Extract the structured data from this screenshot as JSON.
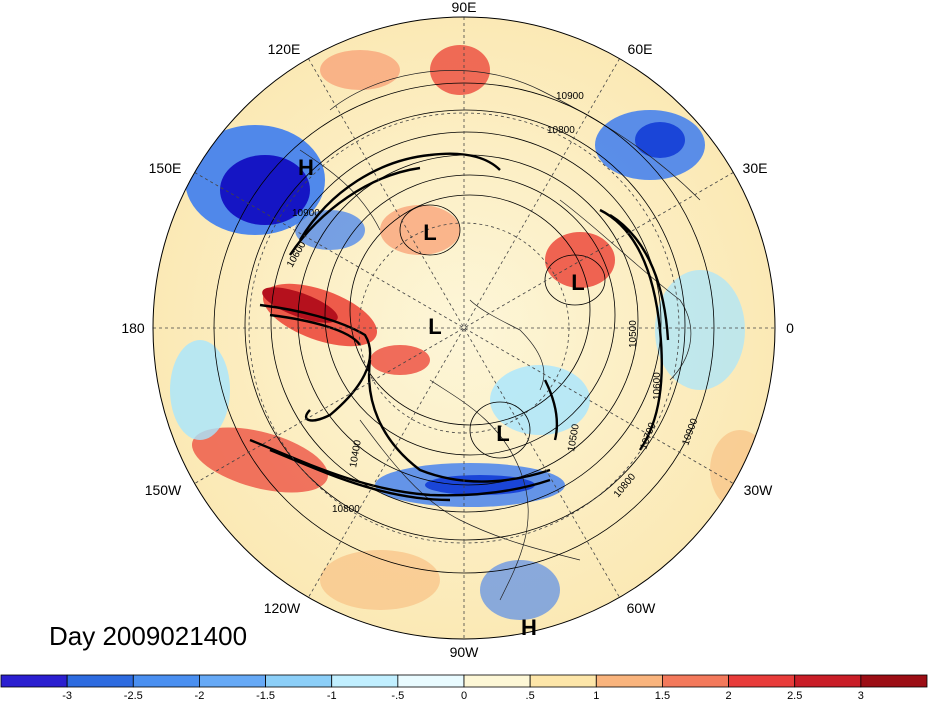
{
  "map": {
    "projection": "north-polar-stereographic",
    "longitude_labels": [
      "90E",
      "60E",
      "30E",
      "0",
      "30W",
      "60W",
      "90W",
      "120W",
      "150W",
      "180",
      "150E",
      "120E"
    ],
    "pressure_centers": [
      {
        "symbol": "H",
        "description": "high over northwest Pacific"
      },
      {
        "symbol": "L",
        "description": "low over Siberia"
      },
      {
        "symbol": "L",
        "description": "low over Scandinavia/Russia"
      },
      {
        "symbol": "L",
        "description": "low near pole"
      },
      {
        "symbol": "L",
        "description": "low over Hudson Bay"
      },
      {
        "symbol": "H",
        "description": "high over Caribbean"
      }
    ],
    "contour_labels": [
      "10900",
      "10800",
      "10900",
      "10600",
      "10400",
      "10800",
      "10500",
      "10700",
      "10800",
      "10900",
      "10500",
      "10600"
    ],
    "date_label": "Day 2009021400",
    "colors": {
      "strong_negative": "#1515c4",
      "negative": "#3d7df0",
      "weak_negative": "#a7e6ff",
      "neutral": "#fbf3cf",
      "weak_positive": "#f9c78c",
      "positive": "#ec4a3c",
      "strong_positive": "#b5111d"
    }
  },
  "colorbar": {
    "tick_labels": [
      "-3",
      "-2.5",
      "-2",
      "-1.5",
      "-1",
      "-.5",
      "0",
      ".5",
      "1",
      "1.5",
      "2",
      "2.5",
      "3"
    ],
    "colors": [
      "#2b1fd0",
      "#2d6be0",
      "#4a8ff0",
      "#66a9f6",
      "#8ccff8",
      "#c1efff",
      "#e9fbff",
      "#fdf7d6",
      "#fde6a9",
      "#f9b47d",
      "#f3795b",
      "#e83c3a",
      "#c91d27",
      "#9c0e15"
    ]
  }
}
